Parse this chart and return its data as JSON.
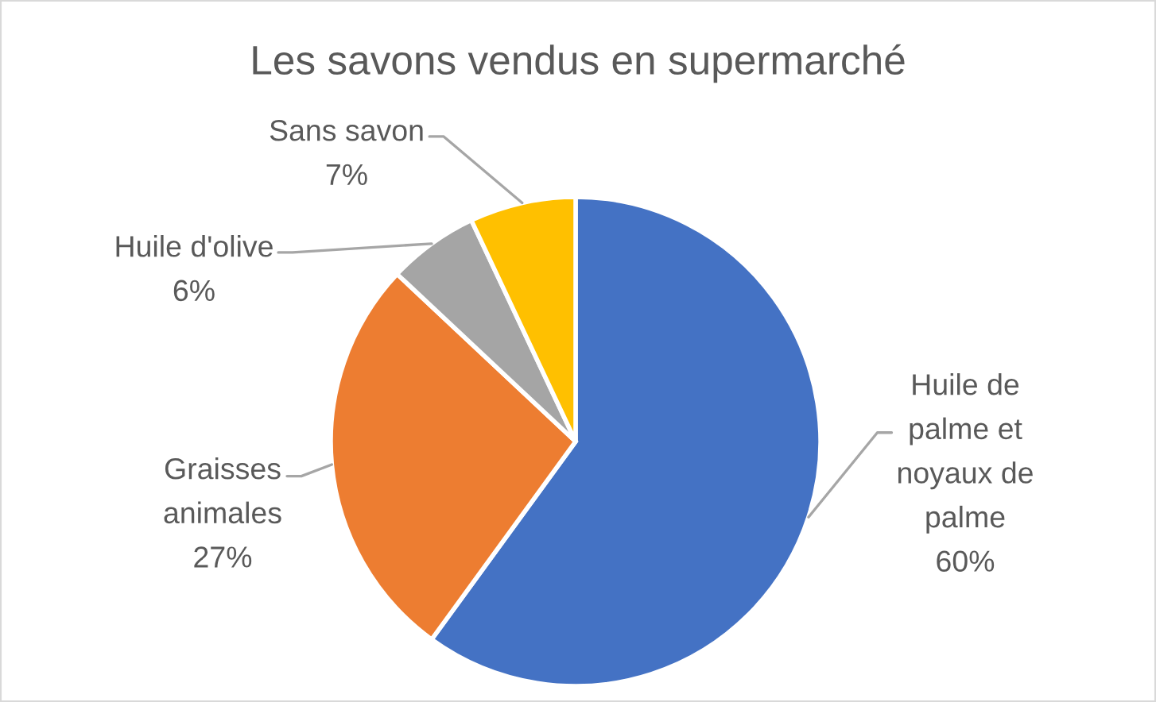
{
  "chart_data": {
    "type": "pie",
    "title": "Les savons vendus en supermarché",
    "categories": [
      "Huile de\npalme et\nnoyaux de\npalme",
      "Graisses\nanimales",
      "Huile d'olive",
      "Sans savon"
    ],
    "values": [
      60,
      27,
      6,
      7
    ],
    "value_labels": [
      "60%",
      "27%",
      "6%",
      "7%"
    ],
    "colors": [
      "#4472c4",
      "#ed7d31",
      "#a5a5a5",
      "#ffc000"
    ]
  }
}
